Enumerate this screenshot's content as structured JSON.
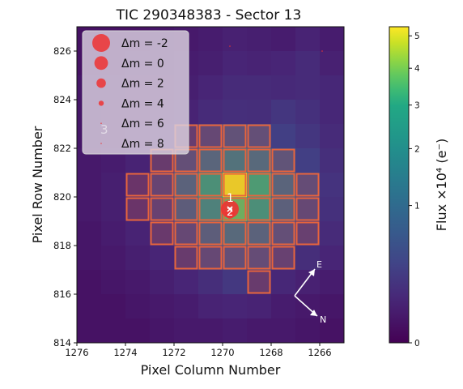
{
  "chart_data": {
    "type": "heatmap",
    "title": "TIC 290348383 - Sector 13",
    "xlabel": "Pixel Column Number",
    "ylabel": "Pixel Row Number",
    "x_axis": {
      "ticks": [
        1276,
        1274,
        1272,
        1270,
        1268,
        1266
      ],
      "range": [
        1276,
        1265
      ],
      "inverted": true
    },
    "y_axis": {
      "ticks": [
        814,
        816,
        818,
        820,
        822,
        824,
        826
      ],
      "range": [
        814,
        827
      ]
    },
    "colorbar": {
      "label": "Flux ×10⁴ (e⁻)",
      "ticks": [
        {
          "value": 0,
          "label": "0"
        },
        {
          "value": 1,
          "label": "1"
        },
        {
          "value": 2,
          "label": "2"
        },
        {
          "value": 3,
          "label": "3"
        },
        {
          "value": 4,
          "label": "4"
        },
        {
          "value": 5,
          "label": "5"
        }
      ],
      "colormap": "viridis",
      "scale": "sqrt",
      "range": [
        0,
        5.3
      ]
    },
    "legend": {
      "placement": "top-left",
      "entries": [
        {
          "label": "Δm =  -2",
          "dm": -2
        },
        {
          "label": "Δm =  0",
          "dm": 0
        },
        {
          "label": "Δm =  2",
          "dm": 2
        },
        {
          "label": "Δm =  4",
          "dm": 4
        },
        {
          "label": "Δm =  6",
          "dm": 6
        },
        {
          "label": "Δm =  8",
          "dm": 8
        }
      ],
      "marker_color": "#ee3333"
    },
    "grid": false,
    "x_columns": [
      1275.5,
      1274.5,
      1273.5,
      1272.5,
      1271.5,
      1270.5,
      1269.5,
      1268.5,
      1267.5,
      1266.5,
      1265.5
    ],
    "y_rows": [
      826.5,
      825.5,
      824.5,
      823.5,
      822.5,
      821.5,
      820.5,
      819.5,
      818.5,
      817.5,
      816.5,
      815.5,
      814.5
    ],
    "flux": [
      [
        0.02,
        0.02,
        0.02,
        0.03,
        0.04,
        0.05,
        0.07,
        0.06,
        0.05,
        0.08,
        0.05
      ],
      [
        0.02,
        0.02,
        0.03,
        0.03,
        0.05,
        0.06,
        0.09,
        0.08,
        0.09,
        0.12,
        0.07
      ],
      [
        0.03,
        0.03,
        0.04,
        0.04,
        0.06,
        0.09,
        0.12,
        0.12,
        0.11,
        0.12,
        0.1
      ],
      [
        0.03,
        0.04,
        0.04,
        0.05,
        0.08,
        0.12,
        0.15,
        0.14,
        0.2,
        0.16,
        0.1
      ],
      [
        0.03,
        0.04,
        0.06,
        0.09,
        0.18,
        0.3,
        0.45,
        0.4,
        0.28,
        0.2,
        0.12
      ],
      [
        0.04,
        0.05,
        0.08,
        0.16,
        0.4,
        0.9,
        1.3,
        1.0,
        0.5,
        0.28,
        0.15
      ],
      [
        0.04,
        0.06,
        0.1,
        0.25,
        0.8,
        2.5,
        5.1,
        3.0,
        0.85,
        0.35,
        0.18
      ],
      [
        0.04,
        0.06,
        0.1,
        0.22,
        0.65,
        1.8,
        3.6,
        2.4,
        0.75,
        0.3,
        0.16
      ],
      [
        0.03,
        0.05,
        0.08,
        0.14,
        0.3,
        0.7,
        1.0,
        0.8,
        0.4,
        0.2,
        0.12
      ],
      [
        0.03,
        0.04,
        0.06,
        0.09,
        0.16,
        0.3,
        0.4,
        0.35,
        0.22,
        0.14,
        0.09
      ],
      [
        0.02,
        0.03,
        0.04,
        0.06,
        0.09,
        0.14,
        0.22,
        0.16,
        0.1,
        0.07,
        0.05
      ],
      [
        0.02,
        0.02,
        0.03,
        0.04,
        0.05,
        0.08,
        0.09,
        0.08,
        0.05,
        0.04,
        0.03
      ],
      [
        0.02,
        0.02,
        0.02,
        0.03,
        0.04,
        0.04,
        0.05,
        0.04,
        0.04,
        0.03,
        0.02
      ]
    ],
    "aperture_pixels": [
      [
        1271.5,
        822.5
      ],
      [
        1270.5,
        822.5
      ],
      [
        1269.5,
        822.5
      ],
      [
        1268.5,
        822.5
      ],
      [
        1272.5,
        821.5
      ],
      [
        1271.5,
        821.5
      ],
      [
        1270.5,
        821.5
      ],
      [
        1269.5,
        821.5
      ],
      [
        1268.5,
        821.5
      ],
      [
        1267.5,
        821.5
      ],
      [
        1273.5,
        820.5
      ],
      [
        1272.5,
        820.5
      ],
      [
        1271.5,
        820.5
      ],
      [
        1270.5,
        820.5
      ],
      [
        1269.5,
        820.5
      ],
      [
        1268.5,
        820.5
      ],
      [
        1267.5,
        820.5
      ],
      [
        1266.5,
        820.5
      ],
      [
        1273.5,
        819.5
      ],
      [
        1272.5,
        819.5
      ],
      [
        1271.5,
        819.5
      ],
      [
        1270.5,
        819.5
      ],
      [
        1269.5,
        819.5
      ],
      [
        1268.5,
        819.5
      ],
      [
        1267.5,
        819.5
      ],
      [
        1266.5,
        819.5
      ],
      [
        1272.5,
        818.5
      ],
      [
        1271.5,
        818.5
      ],
      [
        1270.5,
        818.5
      ],
      [
        1269.5,
        818.5
      ],
      [
        1268.5,
        818.5
      ],
      [
        1267.5,
        818.5
      ],
      [
        1266.5,
        818.5
      ],
      [
        1271.5,
        817.5
      ],
      [
        1270.5,
        817.5
      ],
      [
        1269.5,
        817.5
      ],
      [
        1268.5,
        817.5
      ],
      [
        1267.5,
        817.5
      ],
      [
        1268.5,
        816.5
      ]
    ],
    "aperture_color": "#e8643c",
    "stars": [
      {
        "label": "1",
        "x": 1269.7,
        "y": 819.5,
        "dm": -2
      },
      {
        "label": "2",
        "x": 1269.7,
        "y": 819.3,
        "dm": 2
      },
      {
        "label": "3",
        "x": 1274.9,
        "y": 822.8,
        "dm": 8
      }
    ],
    "faint_stars": [
      {
        "x": 1269.7,
        "y": 826.2,
        "dm": 8
      },
      {
        "x": 1265.9,
        "y": 826.0,
        "dm": 8
      }
    ],
    "compass": {
      "north": "N",
      "east": "E"
    }
  }
}
